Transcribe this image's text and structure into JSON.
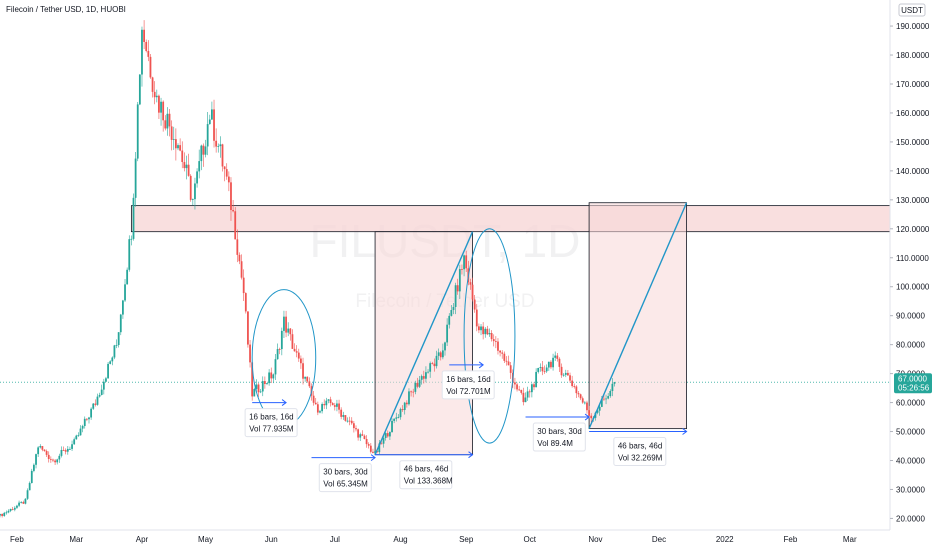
{
  "header": {
    "title": "Filecoin / Tether USD, 1D, HUOBI",
    "currency_badge": "USDT"
  },
  "watermark": {
    "symbol": "FILUSDT, 1D",
    "name": "Filecoin / Tether USD"
  },
  "price_tag": {
    "price": "67.0000",
    "countdown": "05:26:56",
    "color": "#26a69a"
  },
  "colors": {
    "up": "#26a69a",
    "down": "#ef5350",
    "zone_fill": "#f8d7d7",
    "trendline": "#2196c8",
    "measure": "#2962ff"
  },
  "chart_data": {
    "type": "candlestick",
    "title": "Filecoin / Tether USD, 1D, HUOBI",
    "y_ticks": [
      20,
      30,
      40,
      50,
      60,
      70,
      80,
      90,
      100,
      110,
      120,
      130,
      140,
      150,
      160,
      170,
      180,
      190
    ],
    "y_tick_labels": [
      "20.0000",
      "30.0000",
      "40.0000",
      "50.0000",
      "60.0000",
      "70.0000",
      "80.0000",
      "90.0000",
      "100.0000",
      "110.0000",
      "120.0000",
      "130.0000",
      "140.0000",
      "150.0000",
      "160.0000",
      "170.0000",
      "180.0000",
      "190.0000"
    ],
    "ylim": [
      16,
      199
    ],
    "x_ticks": [
      {
        "label": "Feb",
        "date": "2021-02-01"
      },
      {
        "label": "Mar",
        "date": "2021-03-01"
      },
      {
        "label": "Apr",
        "date": "2021-04-01"
      },
      {
        "label": "May",
        "date": "2021-05-01"
      },
      {
        "label": "Jun",
        "date": "2021-06-01"
      },
      {
        "label": "Jul",
        "date": "2021-07-01"
      },
      {
        "label": "Aug",
        "date": "2021-08-01"
      },
      {
        "label": "Sep",
        "date": "2021-09-01"
      },
      {
        "label": "Oct",
        "date": "2021-10-01"
      },
      {
        "label": "Nov",
        "date": "2021-11-01"
      },
      {
        "label": "Dec",
        "date": "2021-12-01"
      },
      {
        "label": "2022",
        "date": "2022-01-01"
      },
      {
        "label": "Feb",
        "date": "2022-02-01"
      },
      {
        "label": "Mar",
        "date": "2022-03-01"
      }
    ],
    "xlim": [
      "2021-01-24",
      "2022-03-20"
    ],
    "last_price": 67.0,
    "price_path": [
      {
        "date": "2021-01-24",
        "price": 21
      },
      {
        "date": "2021-02-05",
        "price": 26
      },
      {
        "date": "2021-02-11",
        "price": 45
      },
      {
        "date": "2021-02-18",
        "price": 40
      },
      {
        "date": "2021-02-28",
        "price": 46
      },
      {
        "date": "2021-03-10",
        "price": 60
      },
      {
        "date": "2021-03-20",
        "price": 80
      },
      {
        "date": "2021-03-27",
        "price": 120
      },
      {
        "date": "2021-04-01",
        "price": 190
      },
      {
        "date": "2021-04-08",
        "price": 165
      },
      {
        "date": "2021-04-18",
        "price": 150
      },
      {
        "date": "2021-04-25",
        "price": 130
      },
      {
        "date": "2021-05-03",
        "price": 160
      },
      {
        "date": "2021-05-10",
        "price": 140
      },
      {
        "date": "2021-05-14",
        "price": 125
      },
      {
        "date": "2021-05-19",
        "price": 98
      },
      {
        "date": "2021-05-23",
        "price": 63
      },
      {
        "date": "2021-06-02",
        "price": 70
      },
      {
        "date": "2021-06-07",
        "price": 88
      },
      {
        "date": "2021-06-15",
        "price": 72
      },
      {
        "date": "2021-06-22",
        "price": 58
      },
      {
        "date": "2021-06-30",
        "price": 60
      },
      {
        "date": "2021-07-08",
        "price": 53
      },
      {
        "date": "2021-07-20",
        "price": 42
      },
      {
        "date": "2021-07-30",
        "price": 55
      },
      {
        "date": "2021-08-10",
        "price": 68
      },
      {
        "date": "2021-08-20",
        "price": 76
      },
      {
        "date": "2021-08-31",
        "price": 110
      },
      {
        "date": "2021-09-07",
        "price": 85
      },
      {
        "date": "2021-09-14",
        "price": 82
      },
      {
        "date": "2021-09-21",
        "price": 72
      },
      {
        "date": "2021-09-28",
        "price": 60
      },
      {
        "date": "2021-10-05",
        "price": 70
      },
      {
        "date": "2021-10-12",
        "price": 75
      },
      {
        "date": "2021-10-20",
        "price": 68
      },
      {
        "date": "2021-10-30",
        "price": 55
      },
      {
        "date": "2021-11-06",
        "price": 62
      },
      {
        "date": "2021-11-10",
        "price": 67
      }
    ],
    "annotations": {
      "resistance_zone": {
        "from": "2021-03-27",
        "to": "2022-03-20",
        "low": 119,
        "high": 128
      },
      "projection_boxes": [
        {
          "from": "2021-07-20",
          "to": "2021-09-04",
          "low": 42,
          "high": 119
        },
        {
          "from": "2021-10-29",
          "to": "2021-12-14",
          "low": 51,
          "high": 129
        }
      ],
      "trendlines": [
        {
          "from": {
            "date": "2021-07-20",
            "price": 42
          },
          "to": {
            "date": "2021-09-04",
            "price": 119
          }
        },
        {
          "from": {
            "date": "2021-10-29",
            "price": 51
          },
          "to": {
            "date": "2021-12-14",
            "price": 129
          }
        }
      ],
      "ellipses": [
        {
          "from": "2021-05-23",
          "to": "2021-06-22",
          "low": 52,
          "high": 99
        },
        {
          "from": "2021-08-31",
          "to": "2021-09-24",
          "low": 46,
          "high": 120
        }
      ],
      "measures": [
        {
          "label1": "16 bars, 16d",
          "label2": "Vol 77.935M",
          "from": "2021-05-23",
          "to": "2021-06-08",
          "price": 60
        },
        {
          "label1": "30 bars, 30d",
          "label2": "Vol 65.345M",
          "from": "2021-06-20",
          "to": "2021-07-20",
          "price": 41
        },
        {
          "label1": "46 bars, 46d",
          "label2": "Vol 133.368M",
          "from": "2021-07-20",
          "to": "2021-09-04",
          "price": 42
        },
        {
          "label1": "16 bars, 16d",
          "label2": "Vol 72.701M",
          "from": "2021-08-24",
          "to": "2021-09-09",
          "price": 73
        },
        {
          "label1": "30 bars, 30d",
          "label2": "Vol 89.4M",
          "from": "2021-09-29",
          "to": "2021-10-29",
          "price": 55
        },
        {
          "label1": "46 bars, 46d",
          "label2": "Vol 32.269M",
          "from": "2021-10-29",
          "to": "2021-12-14",
          "price": 50
        }
      ]
    }
  }
}
